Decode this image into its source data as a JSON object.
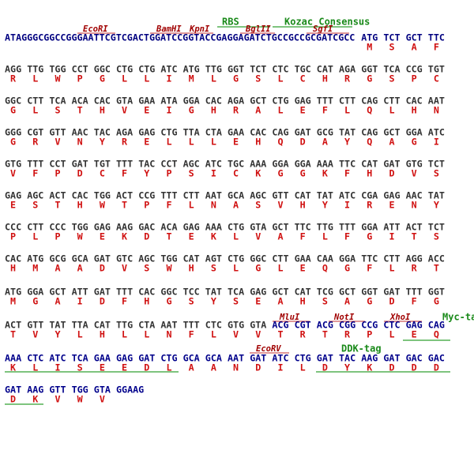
{
  "sites": [
    "EcoRI",
    "BamHI",
    "KpnI",
    "BglII",
    "SgfI",
    "MluI",
    "NotI",
    "XhoI",
    "EcoRV"
  ],
  "features": [
    "RBS",
    "Kozac Consensus",
    "Myc-tag",
    "DDK-tag"
  ],
  "rows": [
    [
      {
        "color": "#000080",
        "codons": [
          "ATAGGGCGGCCGGGAATTCGTCGACTGGATCCGGTACCGAGGAGATCTGCCGCCGCGATCGCC",
          "ATG",
          "TCT",
          "GCT",
          "TTC"
        ],
        "aa": [
          null,
          "M",
          "S",
          "A",
          "F"
        ]
      }
    ],
    [
      {
        "color": "#333333",
        "codons": [
          "AGG",
          "TTG",
          "TGG",
          "CCT",
          "GGC",
          "CTG",
          "CTG",
          "ATC",
          "ATG",
          "TTG",
          "GGT",
          "TCT",
          "CTC",
          "TGC",
          "CAT",
          "AGA",
          "GGT",
          "TCA",
          "CCG",
          "TGT"
        ],
        "aa": [
          "R",
          "L",
          "W",
          "P",
          "G",
          "L",
          "L",
          "I",
          "M",
          "L",
          "G",
          "S",
          "L",
          "C",
          "H",
          "R",
          "G",
          "S",
          "P",
          "C"
        ]
      }
    ],
    [
      {
        "color": "#333333",
        "codons": [
          "GGC",
          "CTT",
          "TCA",
          "ACA",
          "CAC",
          "GTA",
          "GAA",
          "ATA",
          "GGA",
          "CAC",
          "AGA",
          "GCT",
          "CTG",
          "GAG",
          "TTT",
          "CTT",
          "CAG",
          "CTT",
          "CAC",
          "AAT"
        ],
        "aa": [
          "G",
          "L",
          "S",
          "T",
          "H",
          "V",
          "E",
          "I",
          "G",
          "H",
          "R",
          "A",
          "L",
          "E",
          "F",
          "L",
          "Q",
          "L",
          "H",
          "N"
        ]
      }
    ],
    [
      {
        "color": "#333333",
        "codons": [
          "GGG",
          "CGT",
          "GTT",
          "AAC",
          "TAC",
          "AGA",
          "GAG",
          "CTG",
          "TTA",
          "CTA",
          "GAA",
          "CAC",
          "CAG",
          "GAT",
          "GCG",
          "TAT",
          "CAG",
          "GCT",
          "GGA",
          "ATC"
        ],
        "aa": [
          "G",
          "R",
          "V",
          "N",
          "Y",
          "R",
          "E",
          "L",
          "L",
          "L",
          "E",
          "H",
          "Q",
          "D",
          "A",
          "Y",
          "Q",
          "A",
          "G",
          "I"
        ]
      }
    ],
    [
      {
        "color": "#333333",
        "codons": [
          "GTG",
          "TTT",
          "CCT",
          "GAT",
          "TGT",
          "TTT",
          "TAC",
          "CCT",
          "AGC",
          "ATC",
          "TGC",
          "AAA",
          "GGA",
          "GGA",
          "AAA",
          "TTC",
          "CAT",
          "GAT",
          "GTG",
          "TCT"
        ],
        "aa": [
          "V",
          "F",
          "P",
          "D",
          "C",
          "F",
          "Y",
          "P",
          "S",
          "I",
          "C",
          "K",
          "G",
          "G",
          "K",
          "F",
          "H",
          "D",
          "V",
          "S"
        ]
      }
    ],
    [
      {
        "color": "#333333",
        "codons": [
          "GAG",
          "AGC",
          "ACT",
          "CAC",
          "TGG",
          "ACT",
          "CCG",
          "TTT",
          "CTT",
          "AAT",
          "GCA",
          "AGC",
          "GTT",
          "CAT",
          "TAT",
          "ATC",
          "CGA",
          "GAG",
          "AAC",
          "TAT"
        ],
        "aa": [
          "E",
          "S",
          "T",
          "H",
          "W",
          "T",
          "P",
          "F",
          "L",
          "N",
          "A",
          "S",
          "V",
          "H",
          "Y",
          "I",
          "R",
          "E",
          "N",
          "Y"
        ]
      }
    ],
    [
      {
        "color": "#333333",
        "codons": [
          "CCC",
          "CTT",
          "CCC",
          "TGG",
          "GAG",
          "AAG",
          "GAC",
          "ACA",
          "GAG",
          "AAA",
          "CTG",
          "GTA",
          "GCT",
          "TTC",
          "TTG",
          "TTT",
          "GGA",
          "ATT",
          "ACT",
          "TCT"
        ],
        "aa": [
          "P",
          "L",
          "P",
          "W",
          "E",
          "K",
          "D",
          "T",
          "E",
          "K",
          "L",
          "V",
          "A",
          "F",
          "L",
          "F",
          "G",
          "I",
          "T",
          "S"
        ]
      }
    ],
    [
      {
        "color": "#333333",
        "codons": [
          "CAC",
          "ATG",
          "GCG",
          "GCA",
          "GAT",
          "GTC",
          "AGC",
          "TGG",
          "CAT",
          "AGT",
          "CTG",
          "GGC",
          "CTT",
          "GAA",
          "CAA",
          "GGA",
          "TTC",
          "CTT",
          "AGG",
          "ACC"
        ],
        "aa": [
          "H",
          "M",
          "A",
          "A",
          "D",
          "V",
          "S",
          "W",
          "H",
          "S",
          "L",
          "G",
          "L",
          "E",
          "Q",
          "G",
          "F",
          "L",
          "R",
          "T"
        ]
      }
    ],
    [
      {
        "color": "#333333",
        "codons": [
          "ATG",
          "GGA",
          "GCT",
          "ATT",
          "GAT",
          "TTT",
          "CAC",
          "GGC",
          "TCC",
          "TAT",
          "TCA",
          "GAG",
          "GCT",
          "CAT",
          "TCG",
          "GCT",
          "GGT",
          "GAT",
          "TTT",
          "GGT"
        ],
        "aa": [
          "M",
          "G",
          "A",
          "I",
          "D",
          "F",
          "H",
          "G",
          "S",
          "Y",
          "S",
          "E",
          "A",
          "H",
          "S",
          "A",
          "G",
          "D",
          "F",
          "G"
        ]
      }
    ],
    [
      {
        "color": "#333333",
        "codons": [
          "ACT",
          "GTT",
          "TAT",
          "TTA",
          "CAT",
          "TTG",
          "CTA",
          "AAT",
          "TTT",
          "CTC",
          "GTG",
          "GTA"
        ],
        "aa": [
          "T",
          "V",
          "Y",
          "L",
          "H",
          "L",
          "L",
          "N",
          "F",
          "L",
          "V",
          "V"
        ]
      },
      {
        "color": "#00008b",
        "codons": [
          "ACG",
          "CGT",
          "ACG",
          "CGG",
          "CCG",
          "CTC",
          "GAG",
          "CAG"
        ],
        "aa": [
          "T",
          "R",
          "T",
          "R",
          "P",
          "L",
          "E",
          "Q"
        ]
      }
    ],
    [
      {
        "color": "#00008b",
        "codons": [
          "AAA",
          "CTC",
          "ATC",
          "TCA",
          "GAA",
          "GAG",
          "GAT",
          "CTG",
          "GCA",
          "GCA",
          "AAT",
          "GAT",
          "ATC",
          "CTG",
          "GAT",
          "TAC",
          "AAG",
          "GAT",
          "GAC",
          "GAC"
        ],
        "aa": [
          "K",
          "L",
          "I",
          "S",
          "E",
          "E",
          "D",
          "L",
          "A",
          "A",
          "N",
          "D",
          "I",
          "L",
          "D",
          "Y",
          "K",
          "D",
          "D",
          "D"
        ]
      }
    ],
    [
      {
        "color": "#00008b",
        "codons": [
          "GAT",
          "AAG",
          "GTT",
          "TGG",
          "GTA",
          "GGAAG"
        ],
        "aa": [
          "D",
          "K",
          "V",
          "W",
          "V",
          null
        ]
      }
    ]
  ]
}
